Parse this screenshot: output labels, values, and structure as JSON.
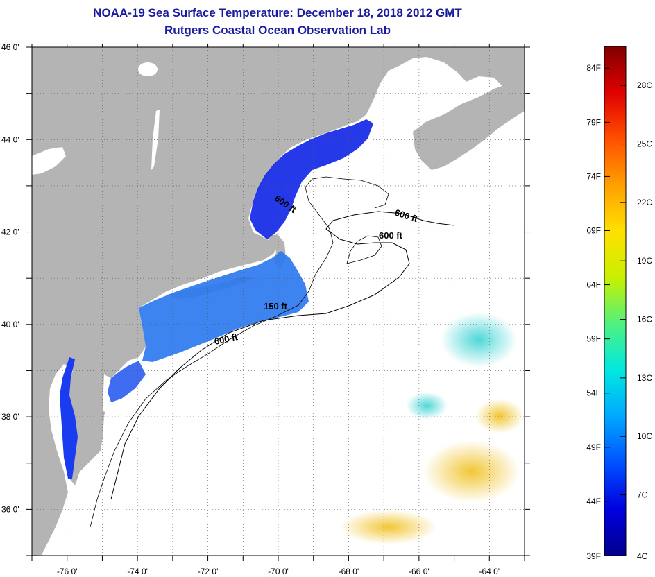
{
  "title": "NOAA-19 Sea Surface Temperature:  December 18, 2018 2012 GMT",
  "subtitle": "Rutgers Coastal Ocean Observation Lab",
  "map": {
    "lon_range": [
      -77,
      -63
    ],
    "lat_range": [
      35,
      46
    ],
    "lat_labels": [
      "46 0'",
      "44 0'",
      "42 0'",
      "40 0'",
      "38 0'",
      "36 0'"
    ],
    "lat_values": [
      46,
      44,
      42,
      40,
      38,
      36
    ],
    "lon_labels": [
      "-76 0'",
      "-74 0'",
      "-72 0'",
      "-70 0'",
      "-68 0'",
      "-66 0'",
      "-64 0'"
    ],
    "lon_values": [
      -76,
      -74,
      -72,
      -70,
      -68,
      -66,
      -64
    ],
    "contour_labels": [
      "600 ft",
      "600 ft",
      "600 ft",
      "150 ft",
      "600 ft"
    ],
    "colors": {
      "land": "#b4b4b4",
      "ocean_cloud": "#ffffff",
      "cold_water": "#1a2ee8",
      "shelf_water": "#2e7af0"
    }
  },
  "colorbar": {
    "f_labels": [
      "84F",
      "79F",
      "74F",
      "69F",
      "64F",
      "59F",
      "54F",
      "49F",
      "44F",
      "39F"
    ],
    "f_values": [
      84,
      79,
      74,
      69,
      64,
      59,
      54,
      49,
      44,
      39
    ],
    "c_labels": [
      "28C",
      "25C",
      "22C",
      "19C",
      "16C",
      "13C",
      "10C",
      "7C",
      "4C"
    ],
    "c_values": [
      28,
      25,
      22,
      19,
      16,
      13,
      10,
      7,
      4
    ],
    "range_f": [
      39,
      86
    ],
    "gradient": [
      "#00008c",
      "#0000e0",
      "#0050ff",
      "#00a8ff",
      "#00e8e0",
      "#50f080",
      "#c8f000",
      "#ffe000",
      "#ffa000",
      "#ff5000",
      "#e00000",
      "#800000"
    ]
  }
}
